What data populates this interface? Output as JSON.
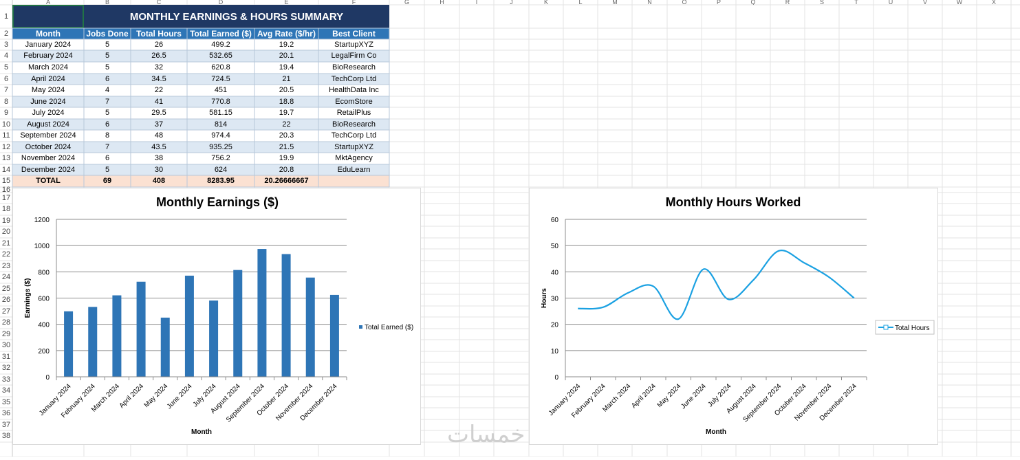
{
  "sheet": {
    "columns": [
      "A",
      "B",
      "C",
      "D",
      "E",
      "F",
      "G",
      "H",
      "I",
      "J",
      "K",
      "L",
      "M",
      "N",
      "O",
      "P",
      "Q",
      "R",
      "S",
      "T",
      "U",
      "V",
      "W",
      "X"
    ],
    "rows": [
      "1",
      "2",
      "3",
      "4",
      "5",
      "6",
      "7",
      "8",
      "9",
      "10",
      "11",
      "12",
      "13",
      "14",
      "15",
      "16",
      "17",
      "18",
      "19",
      "20",
      "21",
      "22",
      "23",
      "24",
      "25",
      "26",
      "27",
      "28",
      "29",
      "30",
      "31",
      "32",
      "33",
      "34",
      "35",
      "36",
      "37",
      "38"
    ]
  },
  "table": {
    "title": "MONTHLY EARNINGS & HOURS SUMMARY",
    "headers": [
      "Month",
      "Jobs Done",
      "Total Hours",
      "Total Earned ($)",
      "Avg Rate ($/hr)",
      "Best Client"
    ],
    "rows": [
      [
        "January 2024",
        "5",
        "26",
        "499.2",
        "19.2",
        "StartupXYZ"
      ],
      [
        "February 2024",
        "5",
        "26.5",
        "532.65",
        "20.1",
        "LegalFirm Co"
      ],
      [
        "March 2024",
        "5",
        "32",
        "620.8",
        "19.4",
        "BioResearch"
      ],
      [
        "April 2024",
        "6",
        "34.5",
        "724.5",
        "21",
        "TechCorp Ltd"
      ],
      [
        "May 2024",
        "4",
        "22",
        "451",
        "20.5",
        "HealthData Inc"
      ],
      [
        "June 2024",
        "7",
        "41",
        "770.8",
        "18.8",
        "EcomStore"
      ],
      [
        "July 2024",
        "5",
        "29.5",
        "581.15",
        "19.7",
        "RetailPlus"
      ],
      [
        "August 2024",
        "6",
        "37",
        "814",
        "22",
        "BioResearch"
      ],
      [
        "September 2024",
        "8",
        "48",
        "974.4",
        "20.3",
        "TechCorp Ltd"
      ],
      [
        "October 2024",
        "7",
        "43.5",
        "935.25",
        "21.5",
        "StartupXYZ"
      ],
      [
        "November 2024",
        "6",
        "38",
        "756.2",
        "19.9",
        "MktAgency"
      ],
      [
        "December 2024",
        "5",
        "30",
        "624",
        "20.8",
        "EduLearn"
      ]
    ],
    "total": [
      "TOTAL",
      "69",
      "408",
      "8283.95",
      "20.26666667",
      ""
    ]
  },
  "watermark": "خمسات",
  "chart_data": [
    {
      "type": "bar",
      "title": "Monthly Earnings ($)",
      "xlabel": "Month",
      "ylabel": "Earnings ($)",
      "ylim": [
        0,
        1200
      ],
      "yticks": [
        "0",
        "200",
        "400",
        "600",
        "800",
        "1000",
        "1200"
      ],
      "categories": [
        "January 2024",
        "February 2024",
        "March 2024",
        "April 2024",
        "May 2024",
        "June 2024",
        "July 2024",
        "August 2024",
        "September 2024",
        "October 2024",
        "November 2024",
        "December 2024"
      ],
      "series": [
        {
          "name": "Total Earned ($)",
          "values": [
            499.2,
            532.65,
            620.8,
            724.5,
            451,
            770.8,
            581.15,
            814,
            974.4,
            935.25,
            756.2,
            624
          ]
        }
      ],
      "color": "#2e75b6",
      "legend": "right",
      "grid": true
    },
    {
      "type": "line",
      "title": "Monthly Hours Worked",
      "xlabel": "Month",
      "ylabel": "Hours",
      "ylim": [
        0,
        60
      ],
      "yticks": [
        "0",
        "10",
        "20",
        "30",
        "40",
        "50",
        "60"
      ],
      "categories": [
        "January 2024",
        "February 2024",
        "March 2024",
        "April 2024",
        "May 2024",
        "June 2024",
        "July 2024",
        "August 2024",
        "September 2024",
        "October 2024",
        "November 2024",
        "December 2024"
      ],
      "series": [
        {
          "name": "Total Hours",
          "values": [
            26,
            26.5,
            32,
            34.5,
            22,
            41,
            29.5,
            37,
            48,
            43.5,
            38,
            30
          ]
        }
      ],
      "color": "#1ba1e2",
      "legend": "right",
      "grid": true
    }
  ]
}
